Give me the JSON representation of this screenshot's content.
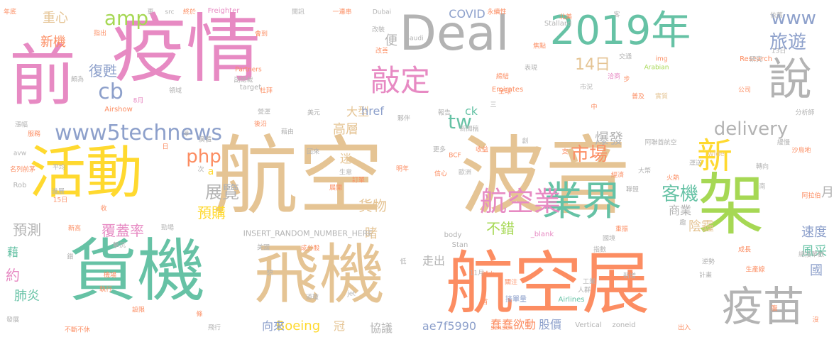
{
  "palette": {
    "tan": "#e5c494",
    "green": "#66c2a5",
    "orange": "#fc8d62",
    "pink": "#e78ac3",
    "yellow": "#ffd92f",
    "gray": "#b3b3b3",
    "blue": "#8da0cb",
    "lime": "#a6d854"
  },
  "words": [
    {
      "text": "波音",
      "color": "tan",
      "vertical": false
    },
    {
      "text": "疫情",
      "color": "pink",
      "vertical": false
    },
    {
      "text": "航空",
      "color": "tan",
      "vertical": false
    },
    {
      "text": "航空展",
      "color": "orange",
      "vertical": false
    },
    {
      "text": "貨機",
      "color": "green",
      "vertical": false
    },
    {
      "text": "飛機",
      "color": "tan",
      "vertical": false
    },
    {
      "text": "前",
      "color": "pink",
      "vertical": false
    },
    {
      "text": "活動",
      "color": "yellow",
      "vertical": false
    },
    {
      "text": "架",
      "color": "lime",
      "vertical": false
    },
    {
      "text": "Deal",
      "color": "gray",
      "vertical": false
    },
    {
      "text": "2019年",
      "color": "green",
      "vertical": false
    },
    {
      "text": "說",
      "color": "gray",
      "vertical": false
    },
    {
      "text": "疫苗",
      "color": "gray",
      "vertical": false
    },
    {
      "text": "業界",
      "color": "green",
      "vertical": false
    },
    {
      "text": "航空業",
      "color": "pink",
      "vertical": false
    },
    {
      "text": "新",
      "color": "yellow",
      "vertical": false
    },
    {
      "text": "敲定",
      "color": "pink",
      "vertical": false
    },
    {
      "text": "www5technews",
      "color": "blue",
      "vertical": false
    },
    {
      "text": "delivery",
      "color": "gray",
      "vertical": false
    },
    {
      "text": "www",
      "color": "blue",
      "vertical": false
    },
    {
      "text": "旅遊",
      "color": "blue",
      "vertical": false
    },
    {
      "text": "amp",
      "color": "lime",
      "vertical": false
    },
    {
      "text": "cb",
      "color": "blue",
      "vertical": false
    },
    {
      "text": "14日",
      "color": "tan",
      "vertical": false
    },
    {
      "text": "tw",
      "color": "green",
      "vertical": false
    },
    {
      "text": "市場",
      "color": "orange",
      "vertical": false
    },
    {
      "text": "客機",
      "color": "green",
      "vertical": false
    },
    {
      "text": "php",
      "color": "orange",
      "vertical": false
    },
    {
      "text": "展覽",
      "color": "gray",
      "vertical": false
    },
    {
      "text": "預購",
      "color": "yellow",
      "vertical": false
    },
    {
      "text": "貨物",
      "color": "tan",
      "vertical": false
    },
    {
      "text": "重心",
      "color": "tan",
      "vertical": false
    },
    {
      "text": "新機",
      "color": "orange",
      "vertical": false
    },
    {
      "text": "復甦",
      "color": "blue",
      "vertical": false
    },
    {
      "text": "爆發",
      "color": "gray",
      "vertical": false
    },
    {
      "text": "高層",
      "color": "tan",
      "vertical": false
    },
    {
      "text": "速度",
      "color": "blue",
      "vertical": false
    },
    {
      "text": "預測",
      "color": "gray",
      "vertical": false
    },
    {
      "text": "覆蓋率",
      "color": "pink",
      "vertical": false
    },
    {
      "text": "不錯",
      "color": "lime",
      "vertical": false
    },
    {
      "text": "風采",
      "color": "green",
      "vertical": false
    },
    {
      "text": "陰霾",
      "color": "tan",
      "vertical": false
    },
    {
      "text": "商業",
      "color": "gray",
      "vertical": false
    },
    {
      "text": "國",
      "color": "blue",
      "vertical": false
    },
    {
      "text": "約",
      "color": "pink",
      "vertical": false
    },
    {
      "text": "肺炎",
      "color": "green",
      "vertical": false
    },
    {
      "text": "藉",
      "color": "green",
      "vertical": false
    },
    {
      "text": "睹",
      "color": "tan",
      "vertical": false
    },
    {
      "text": "月",
      "color": "gray",
      "vertical": false
    },
    {
      "text": "走出",
      "color": "gray",
      "vertical": false
    },
    {
      "text": "迷",
      "color": "tan",
      "vertical": false
    },
    {
      "text": "大型",
      "color": "tan",
      "vertical": false
    },
    {
      "text": "href",
      "color": "blue",
      "vertical": false
    },
    {
      "text": "ck",
      "color": "green",
      "vertical": false
    },
    {
      "text": "COVID",
      "color": "blue",
      "vertical": false
    },
    {
      "text": "Boeing",
      "color": "yellow",
      "vertical": false
    },
    {
      "text": "協議",
      "color": "gray",
      "vertical": false
    },
    {
      "text": "向來",
      "color": "blue",
      "vertical": false
    },
    {
      "text": "冠",
      "color": "tan",
      "vertical": false
    },
    {
      "text": "ae7f5990",
      "color": "blue",
      "vertical": false
    },
    {
      "text": "蠢蠢欲動",
      "color": "orange",
      "vertical": false
    },
    {
      "text": "股價",
      "color": "blue",
      "vertical": false
    },
    {
      "text": "便",
      "color": "gray",
      "vertical": false
    },
    {
      "text": "a",
      "color": "yellow",
      "vertical": false
    },
    {
      "text": "INSERT_RANDOM_NUMBER_HERE",
      "color": "gray",
      "vertical": false
    },
    {
      "text": "_blank",
      "color": "pink",
      "vertical": false
    },
    {
      "text": "接單量",
      "color": "blue",
      "vertical": false
    },
    {
      "text": "Airlines",
      "color": "green",
      "vertical": false
    },
    {
      "text": "Freighter",
      "color": "pink",
      "vertical": false
    },
    {
      "text": "Saudi",
      "color": "gray",
      "vertical": false
    },
    {
      "text": "Dubai",
      "color": "gray",
      "vertical": false
    },
    {
      "text": "Stallard",
      "color": "gray",
      "vertical": false
    },
    {
      "text": "Research",
      "color": "orange",
      "vertical": false
    },
    {
      "text": "Arabian",
      "color": "lime",
      "vertical": false
    },
    {
      "text": "Emirates",
      "color": "orange",
      "vertical": false
    },
    {
      "text": "Airshow",
      "color": "orange",
      "vertical": false
    },
    {
      "text": "Partners",
      "color": "orange",
      "vertical": false
    },
    {
      "text": "target",
      "color": "gray",
      "vertical": false
    },
    {
      "text": "Vertical",
      "color": "gray",
      "vertical": false
    },
    {
      "text": "zoneid",
      "color": "gray",
      "vertical": false
    },
    {
      "text": "body",
      "color": "gray",
      "vertical": false
    },
    {
      "text": "Stan",
      "color": "gray",
      "vertical": false
    },
    {
      "text": "jet",
      "color": "gray",
      "vertical": false
    },
    {
      "text": "BCF",
      "color": "orange",
      "vertical": false
    },
    {
      "text": "Rob",
      "color": "gray",
      "vertical": false
    },
    {
      "text": "avw",
      "color": "gray",
      "vertical": false
    },
    {
      "text": "src",
      "color": "gray",
      "vertical": false
    },
    {
      "text": "img",
      "color": "orange",
      "vertical": false
    },
    {
      "text": "wide",
      "color": "tan",
      "vertical": false
    },
    {
      "text": "8月",
      "color": "pink",
      "vertical": false
    },
    {
      "text": "13日",
      "color": "gray",
      "vertical": false
    },
    {
      "text": "15日",
      "color": "orange",
      "vertical": false
    },
    {
      "text": "11月",
      "color": "gray",
      "vertical": false
    },
    {
      "text": "年底",
      "color": "orange",
      "vertical": false
    },
    {
      "text": "指出",
      "color": "orange",
      "vertical": false
    },
    {
      "text": "更",
      "color": "gray",
      "vertical": false
    },
    {
      "text": "終於",
      "color": "orange",
      "vertical": false
    },
    {
      "text": "會到",
      "color": "orange",
      "vertical": false
    },
    {
      "text": "閱訊",
      "color": "gray",
      "vertical": false
    },
    {
      "text": "一連串",
      "color": "orange",
      "vertical": false
    },
    {
      "text": "永續性",
      "color": "orange",
      "vertical": false
    },
    {
      "text": "北美",
      "color": "orange",
      "vertical": false
    },
    {
      "text": "依舊",
      "color": "gray",
      "vertical": false
    },
    {
      "text": "改裝",
      "color": "gray",
      "vertical": false
    },
    {
      "text": "改善",
      "color": "orange",
      "vertical": false
    },
    {
      "text": "焦點",
      "color": "orange",
      "vertical": false
    },
    {
      "text": "交通",
      "color": "gray",
      "vertical": false
    },
    {
      "text": "研究",
      "color": "gray",
      "vertical": false
    },
    {
      "text": "領域",
      "color": "gray",
      "vertical": false
    },
    {
      "text": "副總裁",
      "color": "gray",
      "vertical": false
    },
    {
      "text": "杜拜",
      "color": "orange",
      "vertical": false
    },
    {
      "text": "締結",
      "color": "orange",
      "vertical": false
    },
    {
      "text": "表現",
      "color": "gray",
      "vertical": false
    },
    {
      "text": "市況",
      "color": "gray",
      "vertical": false
    },
    {
      "text": "洽商",
      "color": "pink",
      "vertical": false
    },
    {
      "text": "普及",
      "color": "orange",
      "vertical": false
    },
    {
      "text": "實質",
      "color": "tan",
      "vertical": false
    },
    {
      "text": "公司",
      "color": "orange",
      "vertical": false
    },
    {
      "text": "全球",
      "color": "orange",
      "vertical": false
    },
    {
      "text": "分析師",
      "color": "gray",
      "vertical": false
    },
    {
      "text": "營運",
      "color": "gray",
      "vertical": false
    },
    {
      "text": "後沿",
      "color": "orange",
      "vertical": false
    },
    {
      "text": "美元",
      "color": "gray",
      "vertical": false
    },
    {
      "text": "報告",
      "color": "gray",
      "vertical": false
    },
    {
      "text": "夥伴",
      "color": "gray",
      "vertical": false
    },
    {
      "text": "新聞稿",
      "color": "gray",
      "vertical": false
    },
    {
      "text": "阿聯酋航空",
      "color": "gray",
      "vertical": false
    },
    {
      "text": "沙烏地",
      "color": "orange",
      "vertical": false
    },
    {
      "text": "緩慢",
      "color": "gray",
      "vertical": false
    },
    {
      "text": "轉向",
      "color": "gray",
      "vertical": false
    },
    {
      "text": "運送",
      "color": "gray",
      "vertical": false
    },
    {
      "text": "火熱",
      "color": "orange",
      "vertical": false
    },
    {
      "text": "大幣",
      "color": "gray",
      "vertical": false
    },
    {
      "text": "經濟",
      "color": "orange",
      "vertical": false
    },
    {
      "text": "聯盟",
      "color": "gray",
      "vertical": false
    },
    {
      "text": "阿拉伯",
      "color": "orange",
      "vertical": false
    },
    {
      "text": "重振",
      "color": "orange",
      "vertical": false
    },
    {
      "text": "國境",
      "color": "gray",
      "vertical": false
    },
    {
      "text": "指數",
      "color": "gray",
      "vertical": false
    },
    {
      "text": "總接單數",
      "color": "gray",
      "vertical": false
    },
    {
      "text": "成長",
      "color": "orange",
      "vertical": false
    },
    {
      "text": "逆勢",
      "color": "gray",
      "vertical": false
    },
    {
      "text": "計畫",
      "color": "gray",
      "vertical": false
    },
    {
      "text": "生產線",
      "color": "orange",
      "vertical": false
    },
    {
      "text": "減少",
      "color": "orange",
      "vertical": false
    },
    {
      "text": "關注",
      "color": "orange",
      "vertical": false
    },
    {
      "text": "工業",
      "color": "gray",
      "vertical": false
    },
    {
      "text": "人群",
      "color": "gray",
      "vertical": false
    },
    {
      "text": "新增",
      "color": "gray",
      "vertical": false
    },
    {
      "text": "出入",
      "color": "orange",
      "vertical": false
    },
    {
      "text": "沒",
      "color": "orange",
      "vertical": false
    },
    {
      "text": "腹",
      "color": "orange",
      "vertical": false
    },
    {
      "text": "成分股",
      "color": "orange",
      "vertical": false
    },
    {
      "text": "低",
      "color": "gray",
      "vertical": false
    },
    {
      "text": "首",
      "color": "orange",
      "vertical": false
    },
    {
      "text": "道瓊",
      "color": "gray",
      "vertical": false
    },
    {
      "text": "飛行",
      "color": "gray",
      "vertical": false
    },
    {
      "text": "發展",
      "color": "gray",
      "vertical": false
    },
    {
      "text": "不斷不休",
      "color": "orange",
      "vertical": false
    },
    {
      "text": "設限",
      "color": "orange",
      "vertical": false
    },
    {
      "text": "執行",
      "color": "orange",
      "vertical": false
    },
    {
      "text": "機場",
      "color": "orange",
      "vertical": false
    },
    {
      "text": "擊沉",
      "color": "gray",
      "vertical": false
    },
    {
      "text": "勁場",
      "color": "gray",
      "vertical": false
    },
    {
      "text": "新高",
      "color": "orange",
      "vertical": false
    },
    {
      "text": "收",
      "color": "orange",
      "vertical": false
    },
    {
      "text": "進展",
      "color": "gray",
      "vertical": false
    },
    {
      "text": "平均",
      "color": "gray",
      "vertical": false
    },
    {
      "text": "名列前茅",
      "color": "orange",
      "vertical": false
    },
    {
      "text": "日",
      "color": "orange",
      "vertical": false
    },
    {
      "text": "淨",
      "color": "gray",
      "vertical": false
    },
    {
      "text": "廣體",
      "color": "gray",
      "vertical": false
    },
    {
      "text": "藉由",
      "color": "gray",
      "vertical": false
    },
    {
      "text": "漲幅",
      "color": "gray",
      "vertical": false
    },
    {
      "text": "服務",
      "color": "orange",
      "vertical": false
    },
    {
      "text": "頗為",
      "color": "gray",
      "vertical": false
    },
    {
      "text": "回來",
      "color": "gray",
      "vertical": false
    },
    {
      "text": "生意",
      "color": "gray",
      "vertical": false
    },
    {
      "text": "訂單",
      "color": "orange",
      "vertical": false
    },
    {
      "text": "展開",
      "color": "orange",
      "vertical": false
    },
    {
      "text": "明年",
      "color": "orange",
      "vertical": false
    },
    {
      "text": "信心",
      "color": "orange",
      "vertical": false
    },
    {
      "text": "歐洲",
      "color": "gray",
      "vertical": false
    },
    {
      "text": "收益",
      "color": "orange",
      "vertical": false
    },
    {
      "text": "更多",
      "color": "gray",
      "vertical": false
    },
    {
      "text": "美國",
      "color": "gray",
      "vertical": false
    },
    {
      "text": "想",
      "color": "gray",
      "vertical": false
    },
    {
      "text": "條",
      "color": "orange",
      "vertical": false
    },
    {
      "text": "中",
      "color": "orange",
      "vertical": false
    },
    {
      "text": "三",
      "color": "gray",
      "vertical": false
    },
    {
      "text": "創",
      "color": "gray",
      "vertical": false
    },
    {
      "text": "客",
      "color": "gray",
      "vertical": false
    },
    {
      "text": "步",
      "color": "orange",
      "vertical": false
    },
    {
      "text": "支",
      "color": "orange",
      "vertical": false
    },
    {
      "text": "錯",
      "color": "gray",
      "vertical": false
    },
    {
      "text": "次",
      "color": "gray",
      "vertical": false
    },
    {
      "text": "南",
      "color": "gray",
      "vertical": false
    },
    {
      "text": "趣",
      "color": "gray",
      "vertical": false
    }
  ]
}
